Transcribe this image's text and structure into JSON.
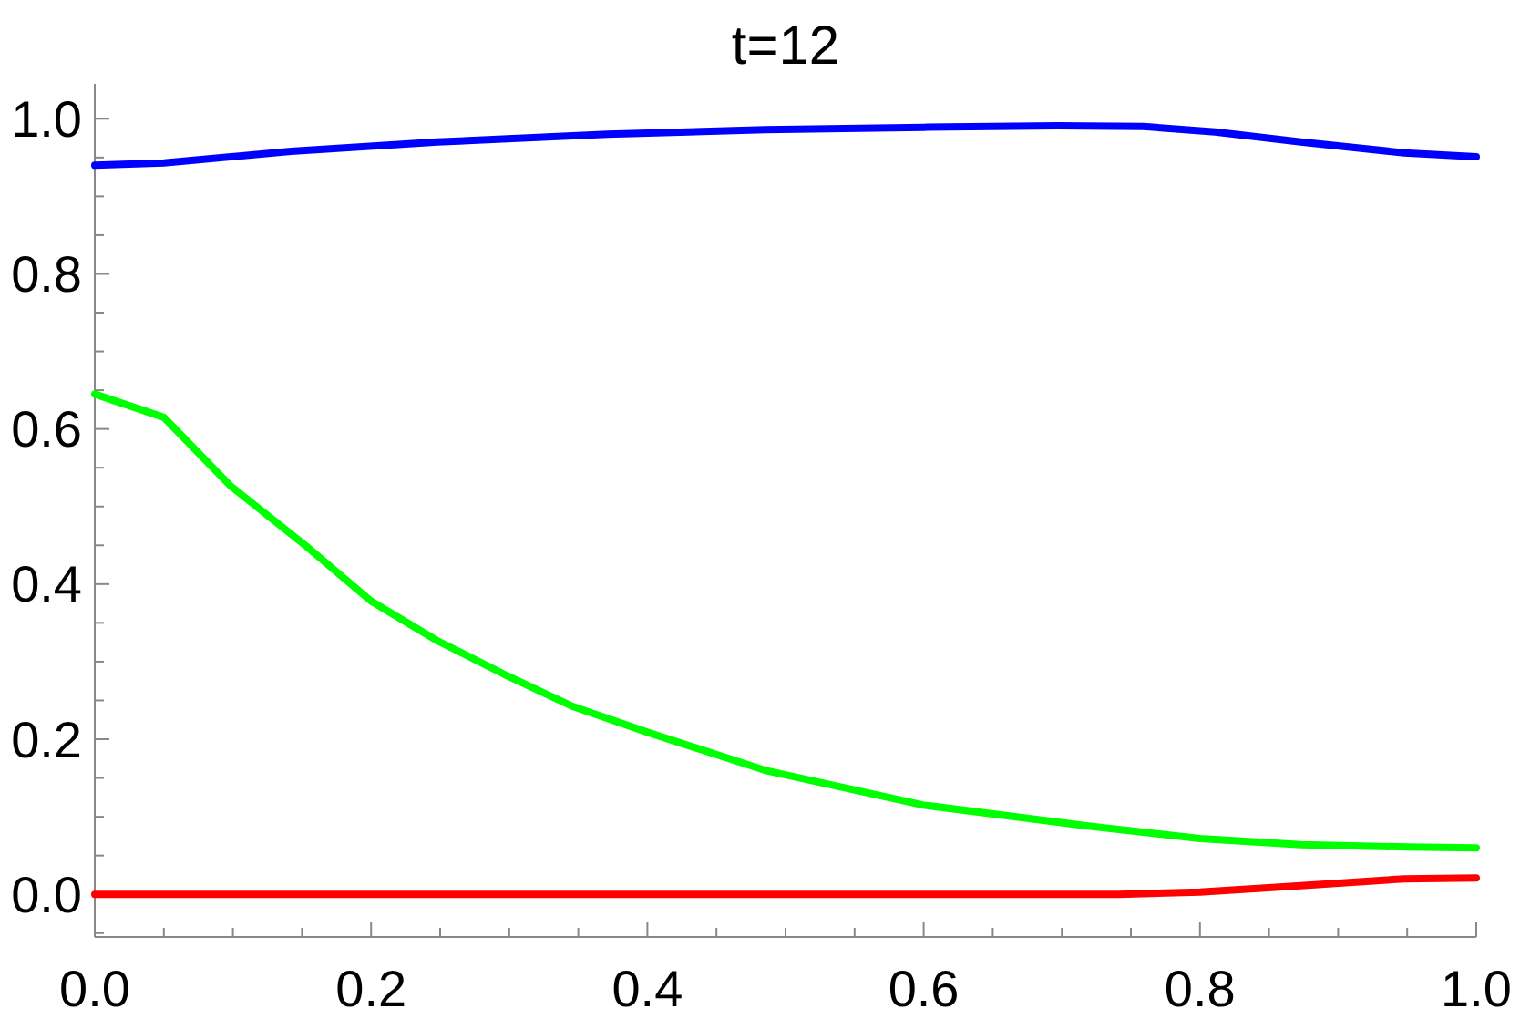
{
  "chart_data": {
    "type": "line",
    "title": "t=12",
    "xlim": [
      0,
      1
    ],
    "ylim": [
      -0.055,
      1.045
    ],
    "xticks": [
      {
        "value": 0,
        "label": "0.0"
      },
      {
        "value": 0.05,
        "label": null
      },
      {
        "value": 0.1,
        "label": null
      },
      {
        "value": 0.15,
        "label": null
      },
      {
        "value": 0.2,
        "label": "0.2"
      },
      {
        "value": 0.25,
        "label": null
      },
      {
        "value": 0.3,
        "label": null
      },
      {
        "value": 0.35,
        "label": null
      },
      {
        "value": 0.4,
        "label": "0.4"
      },
      {
        "value": 0.45,
        "label": null
      },
      {
        "value": 0.5,
        "label": null
      },
      {
        "value": 0.55,
        "label": null
      },
      {
        "value": 0.6,
        "label": "0.6"
      },
      {
        "value": 0.65,
        "label": null
      },
      {
        "value": 0.7,
        "label": null
      },
      {
        "value": 0.75,
        "label": null
      },
      {
        "value": 0.8,
        "label": "0.8"
      },
      {
        "value": 0.85,
        "label": null
      },
      {
        "value": 0.9,
        "label": null
      },
      {
        "value": 0.95,
        "label": null
      },
      {
        "value": 1,
        "label": "1.0"
      }
    ],
    "yticks": [
      {
        "value": -0.05,
        "label": null
      },
      {
        "value": 0,
        "label": "0.0"
      },
      {
        "value": 0.05,
        "label": null
      },
      {
        "value": 0.1,
        "label": null
      },
      {
        "value": 0.15,
        "label": null
      },
      {
        "value": 0.2,
        "label": "0.2"
      },
      {
        "value": 0.25,
        "label": null
      },
      {
        "value": 0.3,
        "label": null
      },
      {
        "value": 0.35,
        "label": null
      },
      {
        "value": 0.4,
        "label": "0.4"
      },
      {
        "value": 0.45,
        "label": null
      },
      {
        "value": 0.5,
        "label": null
      },
      {
        "value": 0.55,
        "label": null
      },
      {
        "value": 0.6,
        "label": "0.6"
      },
      {
        "value": 0.65,
        "label": null
      },
      {
        "value": 0.7,
        "label": null
      },
      {
        "value": 0.75,
        "label": null
      },
      {
        "value": 0.8,
        "label": "0.8"
      },
      {
        "value": 0.85,
        "label": null
      },
      {
        "value": 0.9,
        "label": null
      },
      {
        "value": 0.95,
        "label": null
      },
      {
        "value": 1,
        "label": "1.0"
      }
    ],
    "grid": false,
    "marker": "none",
    "line_style": "solid",
    "series": [
      {
        "color": "#0000ff",
        "x": [
          0,
          0.05,
          0.142,
          0.248,
          0.371,
          0.485,
          0.6,
          0.697,
          0.759,
          0.811,
          0.873,
          0.948,
          1
        ],
        "values": [
          0.94,
          0.943,
          0.958,
          0.97,
          0.98,
          0.986,
          0.989,
          0.991,
          0.99,
          0.983,
          0.97,
          0.956,
          0.951
        ]
      },
      {
        "color": "#00ff00",
        "x": [
          0,
          0.05,
          0.098,
          0.153,
          0.2,
          0.248,
          0.296,
          0.345,
          0.4,
          0.485,
          0.6,
          0.719,
          0.8,
          0.873,
          0.95,
          1
        ],
        "values": [
          0.645,
          0.615,
          0.527,
          0.449,
          0.378,
          0.327,
          0.284,
          0.243,
          0.209,
          0.16,
          0.115,
          0.088,
          0.072,
          0.064,
          0.061,
          0.06
        ]
      },
      {
        "color": "#ff0000",
        "x": [
          0,
          0.2,
          0.4,
          0.6,
          0.741,
          0.8,
          0.873,
          0.948,
          1
        ],
        "values": [
          0,
          0,
          0,
          0,
          0,
          0.003,
          0.011,
          0.02,
          0.021
        ]
      }
    ]
  }
}
